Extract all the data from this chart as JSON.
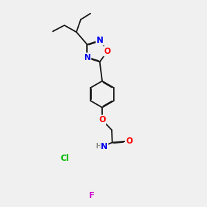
{
  "bg_color": "#f0f0f0",
  "bond_color": "#1a1a1a",
  "bond_width": 1.4,
  "atom_colors": {
    "N": "#0000ee",
    "O": "#ff0000",
    "Cl": "#00bb00",
    "F": "#cc00cc",
    "C": "#1a1a1a",
    "H": "#888888"
  },
  "font_size": 8.5,
  "fig_width": 3.0,
  "fig_height": 3.0
}
